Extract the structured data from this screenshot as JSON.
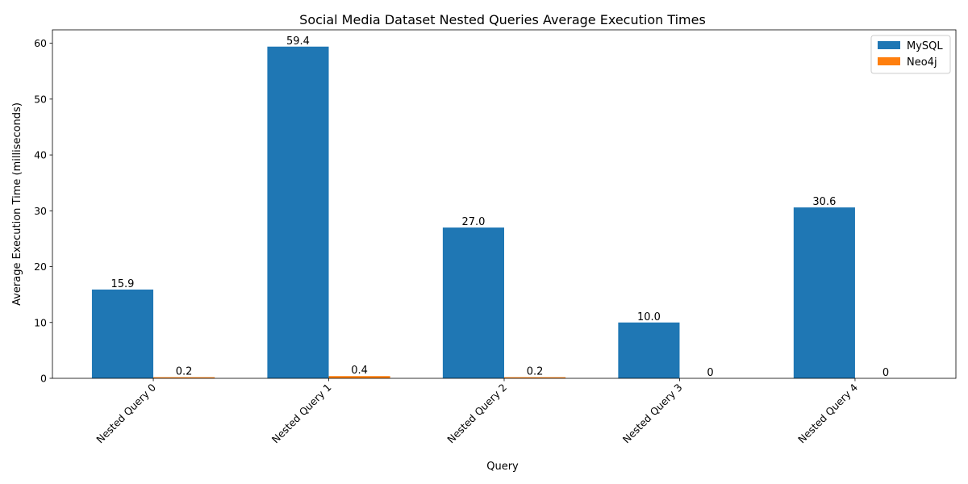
{
  "chart_data": {
    "type": "bar",
    "title": "Social Media Dataset Nested Queries Average Execution Times",
    "xlabel": "Query",
    "ylabel": "Average Execution Time (milliseconds)",
    "categories": [
      "Nested Query 0",
      "Nested Query 1",
      "Nested Query 2",
      "Nested Query 3",
      "Nested Query 4"
    ],
    "series": [
      {
        "name": "MySQL",
        "color": "#1f77b4",
        "values": [
          15.9,
          59.4,
          27.0,
          10.0,
          30.6
        ],
        "labels": [
          "15.9",
          "59.4",
          "27.0",
          "10.0",
          "30.6"
        ]
      },
      {
        "name": "Neo4j",
        "color": "#ff7f0e",
        "values": [
          0.2,
          0.4,
          0.2,
          0,
          0
        ],
        "labels": [
          "0.2",
          "0.4",
          "0.2",
          "0",
          "0"
        ]
      }
    ],
    "ylim": [
      0,
      62.4
    ],
    "yticks": [
      0,
      10,
      20,
      30,
      40,
      50,
      60
    ],
    "ytick_labels": [
      "0",
      "10",
      "20",
      "30",
      "40",
      "50",
      "60"
    ],
    "legend_position": "upper right",
    "grid": false
  }
}
